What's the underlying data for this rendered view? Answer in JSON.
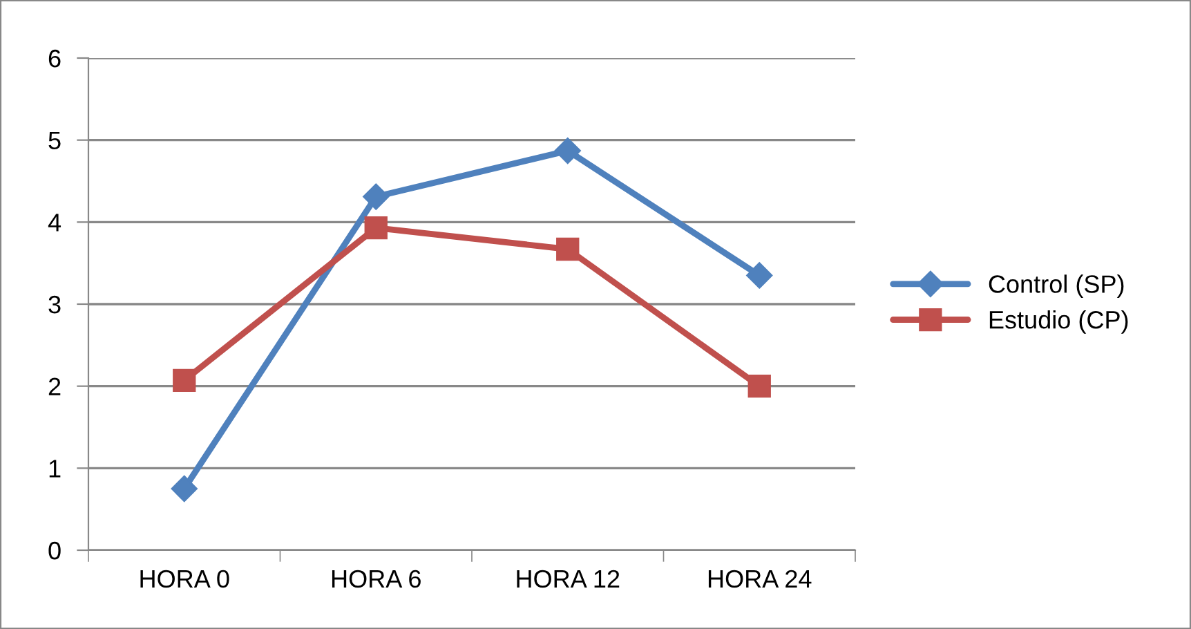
{
  "chart_data": {
    "type": "line",
    "categories": [
      "HORA 0",
      "HORA 6",
      "HORA 12",
      "HORA 24"
    ],
    "series": [
      {
        "name": "Control (SP)",
        "color": "#4f81bd",
        "marker": "diamond",
        "values": [
          0.75,
          4.31,
          4.87,
          3.35
        ]
      },
      {
        "name": "Estudio (CP)",
        "color": "#c0504d",
        "marker": "square",
        "values": [
          2.07,
          3.93,
          3.67,
          2.0
        ]
      }
    ],
    "ylim": [
      0,
      6
    ],
    "yticks": [
      0,
      1,
      2,
      3,
      4,
      5,
      6
    ],
    "grid": "y",
    "legend": "right",
    "line_style": "solid"
  }
}
